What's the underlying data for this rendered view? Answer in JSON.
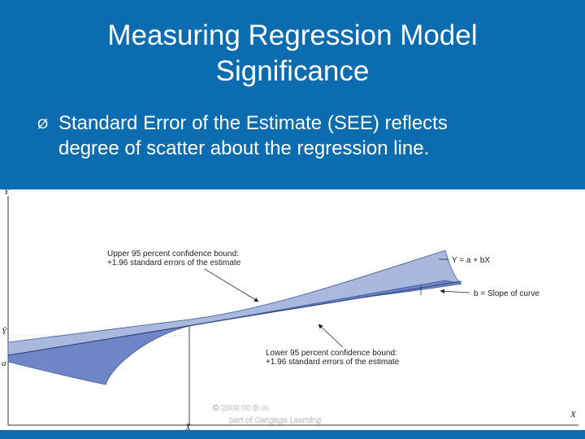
{
  "slide": {
    "title_lines": [
      "Measuring Regression Model",
      "Significance"
    ],
    "bullet_marker": "Ø",
    "bullet_lines": [
      "Standard Error of the Estimate (SEE) reflects",
      "degree of scatter about the regression line."
    ]
  },
  "figure": {
    "axis_labels": {
      "y_axis": "Y",
      "x_axis": "X",
      "y_mean": "Ȳ",
      "intercept": "a",
      "x_mean": "X̄"
    },
    "upper_bound_label": [
      "Upper 95 percent confidence bound:",
      "+1.96 standard errors of the estimate"
    ],
    "lower_bound_label": [
      "Lower 95 percent confidence bound:",
      "+1.96 standard errors of the estimate"
    ],
    "equation_label": "Y = a + bX",
    "slope_label": "b = Slope of curve",
    "copyright_lines": [
      "© 2009  00     th       m",
      "part of Cengage Learning"
    ],
    "colors": {
      "upper_band": "#a9b9dd",
      "lower_band": "#6f86c6",
      "band_edge": "#3f5a9c",
      "slide_blue": "#0b6cb0"
    }
  }
}
